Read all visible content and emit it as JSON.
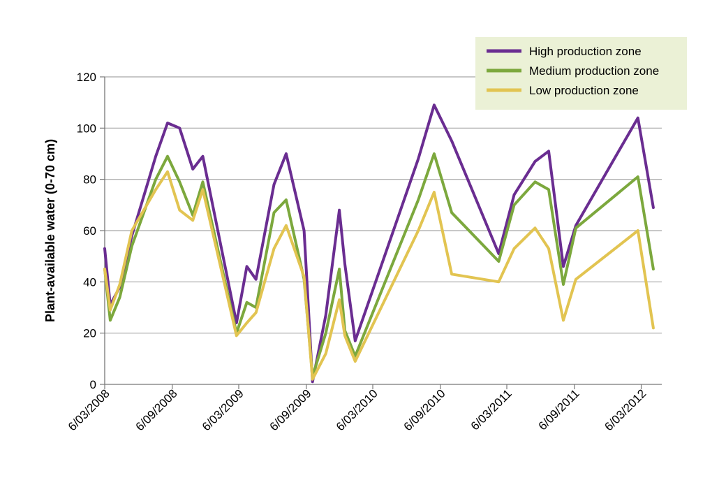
{
  "chart_data": {
    "type": "line",
    "title": "",
    "xlabel": "",
    "ylabel": "Plant-available water (0-70 cm)",
    "ylim": [
      0,
      120
    ],
    "yticks": [
      "0",
      "20",
      "40",
      "60",
      "80",
      "100",
      "120"
    ],
    "xlim": [
      "2008-03-06",
      "2012-05-01"
    ],
    "xtick_dates": [
      "2008-03-06",
      "2008-09-06",
      "2009-03-06",
      "2009-09-06",
      "2010-03-06",
      "2010-09-06",
      "2011-03-06",
      "2011-09-06",
      "2012-03-06"
    ],
    "xtick_labels": [
      "6/03/2008",
      "6/09/2008",
      "6/03/2009",
      "6/09/2009",
      "6/03/2010",
      "6/09/2010",
      "6/03/2011",
      "6/09/2011",
      "6/03/2012"
    ],
    "grid": "horizontal",
    "legend_position": "top-right",
    "legend_background": "#ebf1d6",
    "series": [
      {
        "name": "High production zone",
        "color": "#6a2d91",
        "points": [
          [
            "2008-03-06",
            53
          ],
          [
            "2008-03-21",
            31
          ],
          [
            "2008-04-16",
            38
          ],
          [
            "2008-05-19",
            58
          ],
          [
            "2008-07-23",
            89
          ],
          [
            "2008-08-24",
            102
          ],
          [
            "2008-09-26",
            100
          ],
          [
            "2008-11-01",
            84
          ],
          [
            "2008-11-28",
            89
          ],
          [
            "2009-02-28",
            24
          ],
          [
            "2009-03-28",
            46
          ],
          [
            "2009-04-22",
            41
          ],
          [
            "2009-06-10",
            78
          ],
          [
            "2009-07-13",
            90
          ],
          [
            "2009-08-31",
            60
          ],
          [
            "2009-09-23",
            1
          ],
          [
            "2009-10-29",
            27
          ],
          [
            "2009-12-05",
            68
          ],
          [
            "2009-12-20",
            47
          ],
          [
            "2010-01-17",
            17
          ],
          [
            "2010-07-08",
            88
          ],
          [
            "2010-08-20",
            109
          ],
          [
            "2010-10-07",
            95
          ],
          [
            "2011-02-12",
            51
          ],
          [
            "2011-03-26",
            74
          ],
          [
            "2011-05-22",
            87
          ],
          [
            "2011-06-28",
            91
          ],
          [
            "2011-08-07",
            46
          ],
          [
            "2011-09-10",
            62
          ],
          [
            "2012-02-26",
            104
          ],
          [
            "2012-04-08",
            69
          ]
        ]
      },
      {
        "name": "Medium production zone",
        "color": "#7ca83d",
        "points": [
          [
            "2008-03-06",
            45
          ],
          [
            "2008-03-21",
            25
          ],
          [
            "2008-04-16",
            34
          ],
          [
            "2008-05-19",
            54
          ],
          [
            "2008-07-23",
            80
          ],
          [
            "2008-08-24",
            89
          ],
          [
            "2008-09-26",
            79
          ],
          [
            "2008-11-01",
            66
          ],
          [
            "2008-11-28",
            79
          ],
          [
            "2009-02-28",
            20
          ],
          [
            "2009-03-28",
            32
          ],
          [
            "2009-04-22",
            30
          ],
          [
            "2009-06-10",
            67
          ],
          [
            "2009-07-13",
            72
          ],
          [
            "2009-08-31",
            41
          ],
          [
            "2009-09-23",
            3
          ],
          [
            "2009-10-29",
            20
          ],
          [
            "2009-12-05",
            45
          ],
          [
            "2009-12-20",
            21
          ],
          [
            "2010-01-17",
            11
          ],
          [
            "2010-07-08",
            72
          ],
          [
            "2010-08-20",
            90
          ],
          [
            "2010-10-07",
            67
          ],
          [
            "2011-02-12",
            48
          ],
          [
            "2011-03-26",
            70
          ],
          [
            "2011-05-22",
            79
          ],
          [
            "2011-06-28",
            76
          ],
          [
            "2011-08-07",
            39
          ],
          [
            "2011-09-10",
            61
          ],
          [
            "2012-02-26",
            81
          ],
          [
            "2012-04-08",
            45
          ]
        ]
      },
      {
        "name": "Low production zone",
        "color": "#e2c451",
        "points": [
          [
            "2008-03-06",
            45
          ],
          [
            "2008-03-21",
            29
          ],
          [
            "2008-04-16",
            39
          ],
          [
            "2008-05-19",
            60
          ],
          [
            "2008-07-23",
            76
          ],
          [
            "2008-08-24",
            83
          ],
          [
            "2008-09-26",
            68
          ],
          [
            "2008-11-01",
            64
          ],
          [
            "2008-11-28",
            76
          ],
          [
            "2009-02-28",
            19
          ],
          [
            "2009-03-28",
            24
          ],
          [
            "2009-04-22",
            28
          ],
          [
            "2009-06-10",
            53
          ],
          [
            "2009-07-13",
            62
          ],
          [
            "2009-08-31",
            42
          ],
          [
            "2009-09-23",
            2
          ],
          [
            "2009-10-29",
            12
          ],
          [
            "2009-12-05",
            33
          ],
          [
            "2009-12-20",
            19
          ],
          [
            "2010-01-17",
            9
          ],
          [
            "2010-07-08",
            60
          ],
          [
            "2010-08-20",
            75
          ],
          [
            "2010-10-07",
            43
          ],
          [
            "2011-02-12",
            40
          ],
          [
            "2011-03-26",
            53
          ],
          [
            "2011-05-22",
            61
          ],
          [
            "2011-06-28",
            53
          ],
          [
            "2011-08-07",
            25
          ],
          [
            "2011-09-10",
            41
          ],
          [
            "2012-02-26",
            60
          ],
          [
            "2012-04-08",
            22
          ]
        ]
      }
    ]
  }
}
